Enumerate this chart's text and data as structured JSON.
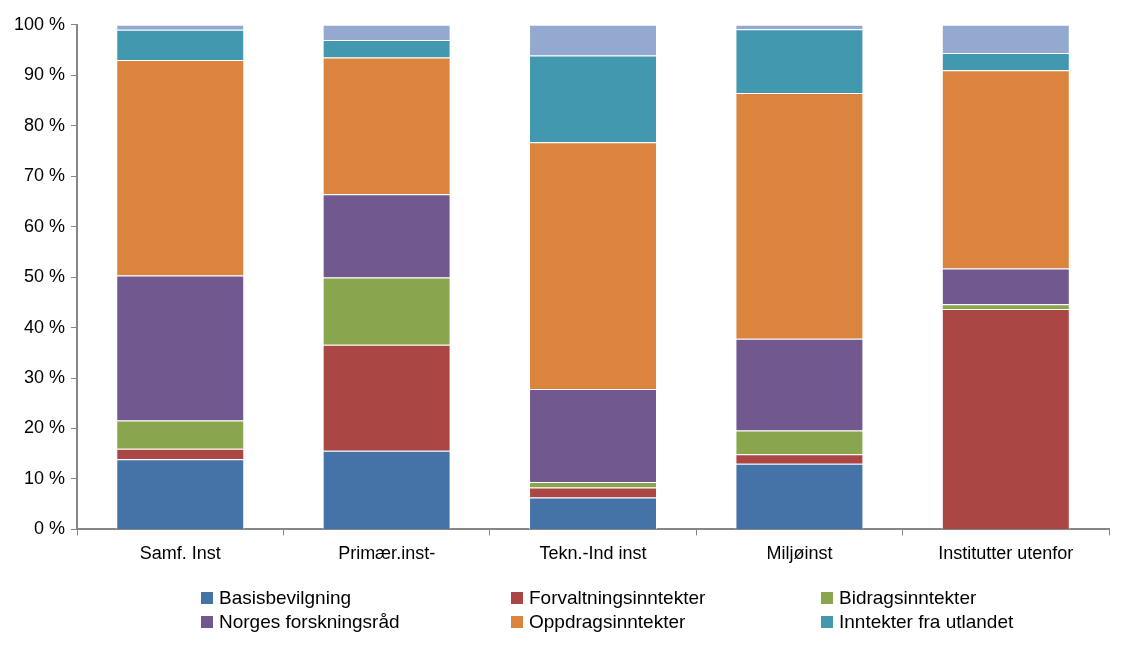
{
  "chart_data": {
    "type": "bar",
    "stacked": true,
    "categories": [
      "Samf. Inst",
      "Primær.inst-",
      "Tekn.-Ind inst",
      "Miljøinst",
      "Institutter utenfor"
    ],
    "series": [
      {
        "name": "Basisbevilgning",
        "color": "#4572a7",
        "values": [
          13.9,
          15.6,
          6.3,
          13.0,
          0
        ]
      },
      {
        "name": "Forvaltningsinntekter",
        "color": "#aa4643",
        "values": [
          2.1,
          21.0,
          2.0,
          1.9,
          43.7
        ]
      },
      {
        "name": "Bidragsinntekter",
        "color": "#89a54e",
        "values": [
          5.6,
          13.3,
          1.1,
          4.7,
          0.9
        ]
      },
      {
        "name": "Norges forskningsråd",
        "color": "#71588f",
        "values": [
          28.7,
          16.5,
          18.4,
          18.2,
          7.1
        ]
      },
      {
        "name": "Oppdragsinntekter",
        "color": "#db843d",
        "values": [
          42.7,
          27.1,
          48.9,
          48.7,
          39.3
        ]
      },
      {
        "name": "Inntekter fra utlandet",
        "color": "#4198af",
        "values": [
          6.0,
          3.5,
          17.2,
          12.6,
          3.4
        ]
      },
      {
        "color": "#93a9cf",
        "values": [
          1.0,
          3.0,
          6.1,
          0.9,
          5.6
        ]
      }
    ],
    "ylim": [
      0,
      100
    ],
    "yticks": [
      {
        "value": 0,
        "label": "0 %"
      },
      {
        "value": 10,
        "label": "10 %"
      },
      {
        "value": 20,
        "label": "20 %"
      },
      {
        "value": 30,
        "label": "30 %"
      },
      {
        "value": 40,
        "label": "40 %"
      },
      {
        "value": 50,
        "label": "50 %"
      },
      {
        "value": 60,
        "label": "60 %"
      },
      {
        "value": 70,
        "label": "70 %"
      },
      {
        "value": 80,
        "label": "80 %"
      },
      {
        "value": 90,
        "label": "90 %"
      },
      {
        "value": 100,
        "label": "100 %"
      }
    ],
    "grid": false,
    "legend": "bottom"
  }
}
